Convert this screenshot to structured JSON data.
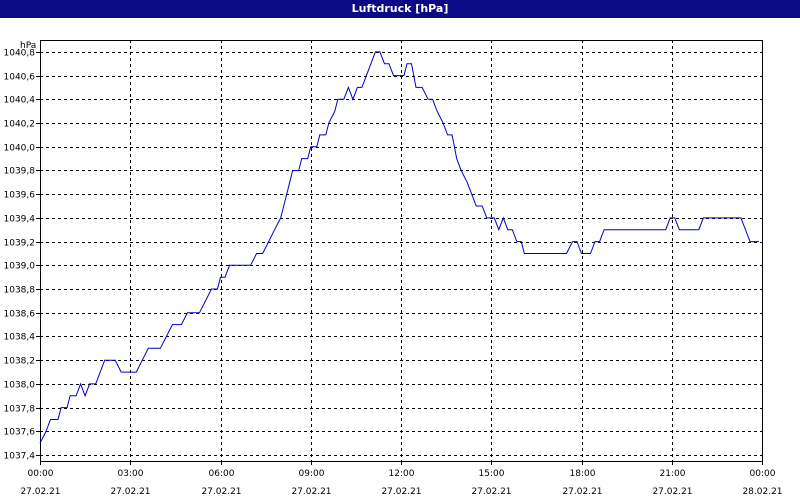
{
  "window": {
    "title": "Luftdruck [hPa]"
  },
  "chart_data": {
    "type": "line",
    "title": "Luftdruck [hPa]",
    "ylabel": "hPa",
    "xlabel": "",
    "ylim": [
      1037.35,
      1040.9
    ],
    "y_ticks": [
      1037.4,
      1037.6,
      1037.8,
      1038.0,
      1038.2,
      1038.4,
      1038.6,
      1038.8,
      1039.0,
      1039.2,
      1039.4,
      1039.6,
      1039.8,
      1040.0,
      1040.2,
      1040.4,
      1040.6,
      1040.8
    ],
    "y_tick_labels": [
      "1037,4",
      "1037,6",
      "1037,8",
      "1038,0",
      "1038,2",
      "1038,4",
      "1038,6",
      "1038,8",
      "1039,0",
      "1039,2",
      "1039,4",
      "1039,6",
      "1039,8",
      "1040,0",
      "1040,2",
      "1040,4",
      "1040,6",
      "1040,8"
    ],
    "x_range_hours": [
      0,
      24
    ],
    "x_ticks": [
      {
        "hour": 0,
        "time": "00:00",
        "date": "27.02.21"
      },
      {
        "hour": 3,
        "time": "03:00",
        "date": "27.02.21"
      },
      {
        "hour": 6,
        "time": "06:00",
        "date": "27.02.21"
      },
      {
        "hour": 9,
        "time": "09:00",
        "date": "27.02.21"
      },
      {
        "hour": 12,
        "time": "12:00",
        "date": "27.02.21"
      },
      {
        "hour": 15,
        "time": "15:00",
        "date": "27.02.21"
      },
      {
        "hour": 18,
        "time": "18:00",
        "date": "27.02.21"
      },
      {
        "hour": 21,
        "time": "21:00",
        "date": "27.02.21"
      },
      {
        "hour": 24,
        "time": "00:00",
        "date": "28.02.21"
      }
    ],
    "grid": true,
    "line_color": "#0000cc",
    "series": [
      {
        "points": [
          [
            0.0,
            1037.5
          ],
          [
            0.2,
            1037.6
          ],
          [
            0.35,
            1037.7
          ],
          [
            0.6,
            1037.7
          ],
          [
            0.7,
            1037.8
          ],
          [
            0.9,
            1037.8
          ],
          [
            1.0,
            1037.9
          ],
          [
            1.2,
            1037.9
          ],
          [
            1.35,
            1038.0
          ],
          [
            1.5,
            1037.9
          ],
          [
            1.65,
            1038.0
          ],
          [
            1.85,
            1038.0
          ],
          [
            2.0,
            1038.1
          ],
          [
            2.15,
            1038.2
          ],
          [
            2.5,
            1038.2
          ],
          [
            2.7,
            1038.1
          ],
          [
            3.2,
            1038.1
          ],
          [
            3.4,
            1038.2
          ],
          [
            3.6,
            1038.3
          ],
          [
            4.0,
            1038.3
          ],
          [
            4.2,
            1038.4
          ],
          [
            4.4,
            1038.5
          ],
          [
            4.7,
            1038.5
          ],
          [
            4.9,
            1038.6
          ],
          [
            5.3,
            1038.6
          ],
          [
            5.5,
            1038.7
          ],
          [
            5.7,
            1038.8
          ],
          [
            5.9,
            1038.8
          ],
          [
            6.0,
            1038.9
          ],
          [
            6.15,
            1038.9
          ],
          [
            6.3,
            1039.0
          ],
          [
            6.5,
            1039.0
          ],
          [
            7.0,
            1039.0
          ],
          [
            7.2,
            1039.1
          ],
          [
            7.4,
            1039.1
          ],
          [
            7.6,
            1039.2
          ],
          [
            7.8,
            1039.3
          ],
          [
            8.0,
            1039.4
          ],
          [
            8.1,
            1039.5
          ],
          [
            8.2,
            1039.6
          ],
          [
            8.3,
            1039.7
          ],
          [
            8.4,
            1039.8
          ],
          [
            8.6,
            1039.8
          ],
          [
            8.7,
            1039.9
          ],
          [
            8.9,
            1039.9
          ],
          [
            9.0,
            1040.0
          ],
          [
            9.2,
            1040.0
          ],
          [
            9.3,
            1040.1
          ],
          [
            9.5,
            1040.1
          ],
          [
            9.6,
            1040.2
          ],
          [
            9.8,
            1040.3
          ],
          [
            9.9,
            1040.4
          ],
          [
            10.1,
            1040.4
          ],
          [
            10.25,
            1040.5
          ],
          [
            10.4,
            1040.4
          ],
          [
            10.55,
            1040.5
          ],
          [
            10.7,
            1040.5
          ],
          [
            10.85,
            1040.6
          ],
          [
            11.0,
            1040.7
          ],
          [
            11.15,
            1040.8
          ],
          [
            11.3,
            1040.8
          ],
          [
            11.45,
            1040.7
          ],
          [
            11.6,
            1040.7
          ],
          [
            11.75,
            1040.6
          ],
          [
            12.1,
            1040.6
          ],
          [
            12.2,
            1040.7
          ],
          [
            12.35,
            1040.7
          ],
          [
            12.5,
            1040.5
          ],
          [
            12.7,
            1040.5
          ],
          [
            12.9,
            1040.4
          ],
          [
            13.05,
            1040.4
          ],
          [
            13.2,
            1040.3
          ],
          [
            13.4,
            1040.2
          ],
          [
            13.55,
            1040.1
          ],
          [
            13.7,
            1040.1
          ],
          [
            13.85,
            1039.9
          ],
          [
            14.0,
            1039.8
          ],
          [
            14.2,
            1039.7
          ],
          [
            14.35,
            1039.6
          ],
          [
            14.5,
            1039.5
          ],
          [
            14.7,
            1039.5
          ],
          [
            14.85,
            1039.4
          ],
          [
            15.1,
            1039.4
          ],
          [
            15.25,
            1039.3
          ],
          [
            15.4,
            1039.4
          ],
          [
            15.55,
            1039.3
          ],
          [
            15.7,
            1039.3
          ],
          [
            15.85,
            1039.2
          ],
          [
            16.0,
            1039.2
          ],
          [
            16.1,
            1039.1
          ],
          [
            16.2,
            1039.1
          ],
          [
            17.5,
            1039.1
          ],
          [
            17.7,
            1039.2
          ],
          [
            17.85,
            1039.2
          ],
          [
            18.0,
            1039.1
          ],
          [
            18.3,
            1039.1
          ],
          [
            18.45,
            1039.2
          ],
          [
            18.6,
            1039.2
          ],
          [
            18.75,
            1039.3
          ],
          [
            19.0,
            1039.3
          ],
          [
            20.8,
            1039.3
          ],
          [
            20.95,
            1039.4
          ],
          [
            21.1,
            1039.4
          ],
          [
            21.25,
            1039.3
          ],
          [
            21.9,
            1039.3
          ],
          [
            22.05,
            1039.4
          ],
          [
            23.3,
            1039.4
          ],
          [
            23.45,
            1039.3
          ],
          [
            23.6,
            1039.2
          ],
          [
            23.9,
            1039.2
          ]
        ]
      }
    ]
  }
}
